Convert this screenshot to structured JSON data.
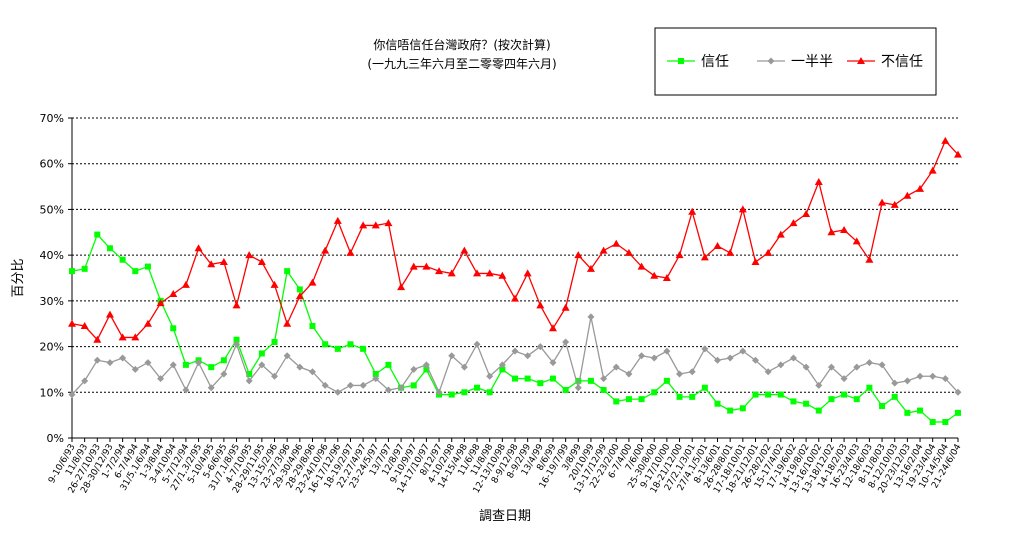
{
  "chart_data": {
    "type": "line",
    "title": "你信唔信任台灣政府？(按次計算)",
    "subtitle": "(一九九三年六月至二零零四年六月)",
    "y_label": "百分比",
    "x_label": "調查日期",
    "categories": [
      "9-10/6/93",
      "11/8/93",
      "26-27/10/93",
      "28-30/12/93",
      "1-7/2/94",
      "6-7/4/94",
      "31/5,1/6/94",
      "1-3/8/94",
      "3-4/10/94",
      "5-7/12/94",
      "27/1,3/2/95",
      "5-10/4/95",
      "5-6/6/95",
      "31/7,1/8/95",
      "4-7/10/95",
      "28-29/11/95",
      "13-15/2/96",
      "23-27/3/96",
      "29-30/4/96",
      "28-29/8/96",
      "23-24/10/96",
      "16-17/12/96",
      "18-19/2/97",
      "22,27/4/97",
      "23-24/5/97",
      "13/7/97",
      "12/8/97",
      "9-10/9/97",
      "14-17/10/97",
      "8/12/97",
      "4-10/2/98",
      "14-15/4/98",
      "11/6/98",
      "11/8/98",
      "12-13/10/98",
      "8-9/12/98",
      "8-9/2/99",
      "13/4/99",
      "8/6/99",
      "16-19/7/99",
      "3/8/99",
      "20/10/99",
      "13-17/12/99",
      "22-23/2/00",
      "6-7/4/00",
      "7/6/00",
      "25-30/8/00",
      "9-17/10/00",
      "18-21/12/00",
      "27/2,1/3/01",
      "27/4,1/5/01",
      "8-13/6/01",
      "26-28/8/01",
      "17-18/10/01",
      "18-21/12/01",
      "26-28/2/02",
      "15-17/4/02",
      "17-19/6/02",
      "14-19/8/02",
      "13-16/10/02",
      "13-18/12/02",
      "14-18/2/03",
      "16-23/4/03",
      "12-18/6/03",
      "8-11/8/03",
      "8-12/10/03",
      "20-23/12/03",
      "13-16/2/04",
      "19-23/4/04",
      "10-14/5/04",
      "21-24/6/04"
    ],
    "series": [
      {
        "name": "信任",
        "color": "#00ff00",
        "marker": "square",
        "values": [
          36.5,
          37,
          44.5,
          41.5,
          39,
          36.5,
          37.5,
          30,
          24,
          16,
          17,
          15.5,
          17,
          21.5,
          14,
          18.5,
          21,
          36.5,
          32.5,
          24.5,
          20.5,
          19.5,
          20.5,
          19.5,
          14,
          16,
          11,
          11.5,
          15,
          9.5,
          9.5,
          10,
          11,
          10,
          15,
          13,
          13,
          12,
          13,
          10.5,
          12.5,
          12.5,
          10.5,
          8,
          8.5,
          8.5,
          10,
          12.5,
          9,
          9,
          11,
          7.5,
          6,
          6.5,
          9.5,
          9.5,
          9.5,
          8,
          7.5,
          6,
          8.5,
          9.5,
          8.5,
          11,
          7,
          9,
          5.5,
          6,
          3.5,
          3.5,
          5.5
        ]
      },
      {
        "name": "一半半",
        "color": "#999999",
        "marker": "diamond",
        "values": [
          9.5,
          12.5,
          17,
          16.5,
          17.5,
          15,
          16.5,
          13,
          16,
          10.5,
          16.5,
          11,
          14,
          20.5,
          12.5,
          16,
          13.5,
          18,
          15.5,
          14.5,
          11.5,
          10,
          11.5,
          11.5,
          13,
          10.5,
          11,
          15,
          16,
          10,
          18,
          15.5,
          20.5,
          13.5,
          16,
          19,
          18,
          20,
          16.5,
          21,
          11,
          26.5,
          13,
          15.5,
          14,
          18,
          17.5,
          19,
          14,
          14.5,
          19.5,
          17,
          17.5,
          19,
          17,
          14.5,
          16,
          17.5,
          15.5,
          11.5,
          15.5,
          13,
          15.5,
          16.5,
          16,
          12,
          12.5,
          13.5,
          13.5,
          13,
          10
        ]
      },
      {
        "name": "不信任",
        "color": "#ff0000",
        "marker": "triangle",
        "values": [
          25,
          24.5,
          21.5,
          27,
          22,
          22,
          25,
          29.5,
          31.5,
          33.5,
          41.5,
          38,
          38.5,
          29,
          40,
          38.5,
          33.5,
          25,
          31,
          34,
          41,
          47.5,
          40.5,
          46.5,
          46.5,
          47,
          33,
          37.5,
          37.5,
          36.5,
          36,
          41,
          36,
          36,
          35.5,
          30.5,
          36,
          29,
          24,
          28.5,
          40,
          37,
          41,
          42.5,
          40.5,
          37.5,
          35.5,
          35,
          40,
          49.5,
          39.5,
          42,
          40.5,
          50,
          38.5,
          40.5,
          44.5,
          47,
          49,
          56,
          45,
          45.5,
          43,
          39,
          51.5,
          51,
          53,
          54.5,
          58.5,
          65,
          62
        ]
      }
    ],
    "ylim": [
      0,
      70
    ],
    "yticks": [
      {
        "value": 0,
        "label": "0%"
      },
      {
        "value": 10,
        "label": "10%"
      },
      {
        "value": 20,
        "label": "20%"
      },
      {
        "value": 30,
        "label": "30%"
      },
      {
        "value": 40,
        "label": "40%"
      },
      {
        "value": 50,
        "label": "50%"
      },
      {
        "value": 60,
        "label": "60%"
      },
      {
        "value": 70,
        "label": "70%"
      }
    ],
    "grid": true,
    "legend": "top-right"
  }
}
